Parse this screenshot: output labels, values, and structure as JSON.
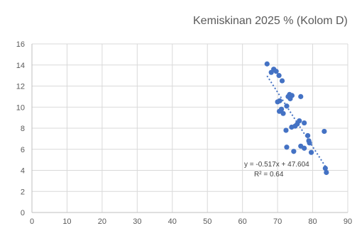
{
  "chart_data": {
    "type": "scatter",
    "title": "Kemiskinan 2025 % (Kolom D)",
    "xlabel": "",
    "ylabel": "",
    "xlim": [
      0,
      90
    ],
    "ylim": [
      0,
      16
    ],
    "x_ticks": [
      0,
      10,
      20,
      30,
      40,
      50,
      60,
      70,
      80,
      90
    ],
    "y_ticks": [
      0,
      2,
      4,
      6,
      8,
      10,
      12,
      14,
      16
    ],
    "grid": true,
    "legend": "none",
    "series": [
      {
        "color": "#4472c4",
        "points": [
          {
            "x": 67.0,
            "y": 14.1
          },
          {
            "x": 68.2,
            "y": 13.3
          },
          {
            "x": 68.9,
            "y": 13.6
          },
          {
            "x": 69.6,
            "y": 13.4
          },
          {
            "x": 70.4,
            "y": 13.0
          },
          {
            "x": 71.3,
            "y": 12.5
          },
          {
            "x": 73.0,
            "y": 11.0
          },
          {
            "x": 73.4,
            "y": 11.2
          },
          {
            "x": 74.1,
            "y": 11.1
          },
          {
            "x": 73.6,
            "y": 10.8
          },
          {
            "x": 76.6,
            "y": 11.0
          },
          {
            "x": 70.0,
            "y": 10.5
          },
          {
            "x": 70.6,
            "y": 10.6
          },
          {
            "x": 72.6,
            "y": 10.1
          },
          {
            "x": 70.5,
            "y": 9.6
          },
          {
            "x": 71.1,
            "y": 9.8
          },
          {
            "x": 71.6,
            "y": 9.4
          },
          {
            "x": 72.4,
            "y": 7.8
          },
          {
            "x": 74.0,
            "y": 8.1
          },
          {
            "x": 75.0,
            "y": 8.2
          },
          {
            "x": 75.6,
            "y": 8.4
          },
          {
            "x": 76.2,
            "y": 8.7
          },
          {
            "x": 77.6,
            "y": 8.5
          },
          {
            "x": 78.6,
            "y": 7.3
          },
          {
            "x": 78.9,
            "y": 6.8
          },
          {
            "x": 79.1,
            "y": 6.6
          },
          {
            "x": 76.6,
            "y": 6.3
          },
          {
            "x": 77.6,
            "y": 6.1
          },
          {
            "x": 72.6,
            "y": 6.2
          },
          {
            "x": 74.6,
            "y": 5.8
          },
          {
            "x": 79.6,
            "y": 5.7
          },
          {
            "x": 83.3,
            "y": 7.7
          },
          {
            "x": 83.6,
            "y": 4.2
          },
          {
            "x": 83.9,
            "y": 3.8
          }
        ]
      }
    ],
    "trendline": {
      "type": "linear",
      "slope": -0.517,
      "intercept": 47.604,
      "x_range": [
        67,
        84
      ],
      "color": "#4472c4",
      "style": "dotted",
      "equation_label": "y = -0.517x + 47.604",
      "r2_label": "R² = 0.64"
    }
  }
}
